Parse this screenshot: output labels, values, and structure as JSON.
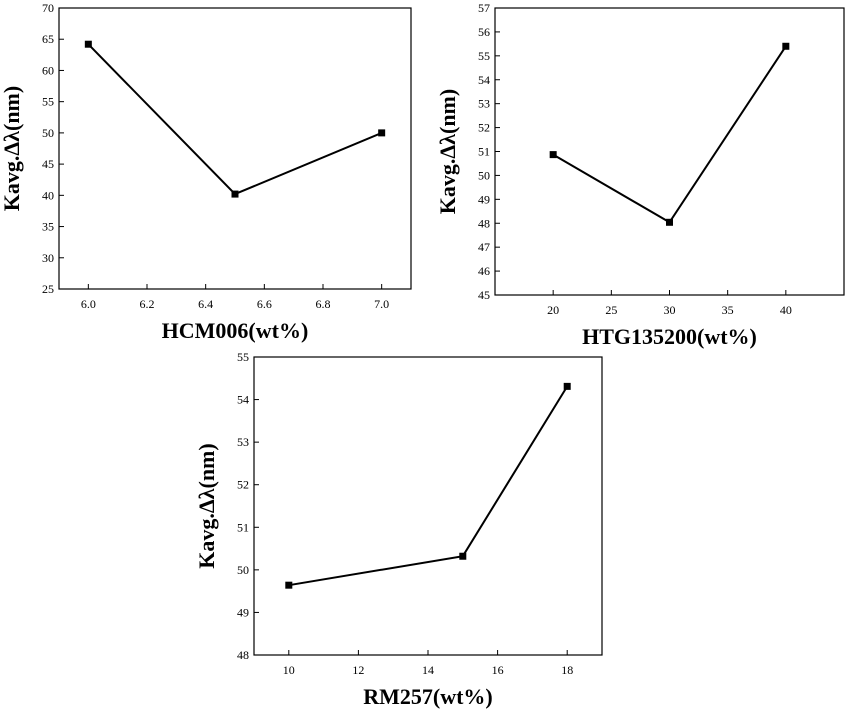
{
  "chart_data": [
    {
      "type": "line",
      "xlabel": "HCM006(wt%)",
      "ylabel": "Kavg.Δλ(nm)",
      "xlim": [
        5.9,
        7.1
      ],
      "ylim": [
        25,
        70
      ],
      "xticks": [
        6.0,
        6.2,
        6.4,
        6.6,
        6.8,
        7.0
      ],
      "xtick_labels": [
        "6.0",
        "6.2",
        "6.4",
        "6.6",
        "6.8",
        "7.0"
      ],
      "yticks": [
        25,
        30,
        35,
        40,
        45,
        50,
        55,
        60,
        65,
        70
      ],
      "ytick_labels": [
        "25",
        "30",
        "35",
        "40",
        "45",
        "50",
        "55",
        "60",
        "65",
        "70"
      ],
      "x": [
        6.0,
        6.5,
        7.0
      ],
      "y": [
        64.2,
        40.2,
        50.0
      ],
      "marker": "square"
    },
    {
      "type": "line",
      "xlabel": "HTG135200(wt%)",
      "ylabel": "Kavg.Δλ(nm)",
      "xlim": [
        15,
        45
      ],
      "ylim": [
        45,
        57
      ],
      "xticks": [
        20,
        25,
        30,
        35,
        40
      ],
      "xtick_labels": [
        "20",
        "25",
        "30",
        "35",
        "40"
      ],
      "yticks": [
        45,
        46,
        47,
        48,
        49,
        50,
        51,
        52,
        53,
        54,
        55,
        56,
        57
      ],
      "ytick_labels": [
        "45",
        "46",
        "47",
        "48",
        "49",
        "50",
        "51",
        "52",
        "53",
        "54",
        "55",
        "56",
        "57"
      ],
      "x": [
        20,
        30,
        40
      ],
      "y": [
        50.87,
        48.04,
        55.4
      ],
      "marker": "square"
    },
    {
      "type": "line",
      "xlabel": "RM257(wt%)",
      "ylabel": "Kavg.Δλ(nm)",
      "xlim": [
        9,
        19
      ],
      "ylim": [
        48,
        55
      ],
      "xticks": [
        10,
        12,
        14,
        16,
        18
      ],
      "xtick_labels": [
        "10",
        "12",
        "14",
        "16",
        "18"
      ],
      "yticks": [
        48,
        49,
        50,
        51,
        52,
        53,
        54,
        55
      ],
      "ytick_labels": [
        "48",
        "49",
        "50",
        "51",
        "52",
        "53",
        "54",
        "55"
      ],
      "x": [
        10,
        15,
        18
      ],
      "y": [
        49.64,
        50.32,
        54.31
      ],
      "marker": "square"
    }
  ]
}
